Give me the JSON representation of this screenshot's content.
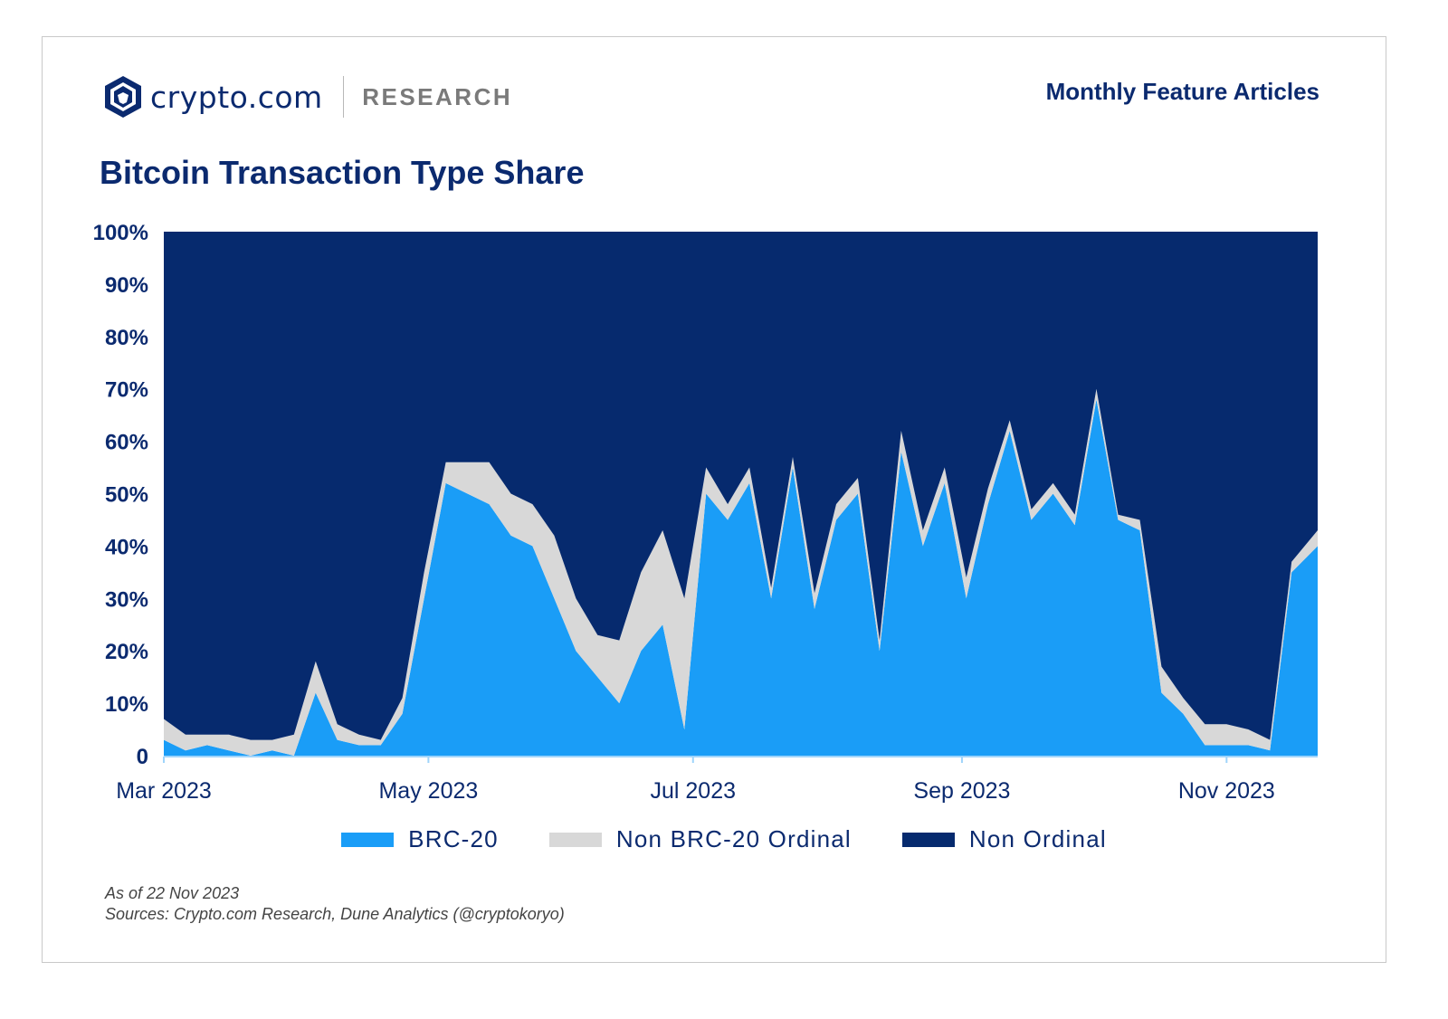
{
  "header": {
    "brand_name": "crypto.com",
    "brand_section": "RESEARCH",
    "series_label": "Monthly Feature Articles",
    "logo_icon": "crypto-com-lion-shield-icon"
  },
  "footer": {
    "as_of": "As of 22 Nov 2023",
    "sources": "Sources: Crypto.com Research, Dune Analytics (@cryptokoryo)"
  },
  "colors": {
    "brc20": "#1a9df7",
    "non_brc20_ordinal": "#d8d8d8",
    "non_ordinal": "#062a6e",
    "text_dark": "#0b2a6f"
  },
  "chart_data": {
    "type": "area",
    "stacked": true,
    "normalized": true,
    "title": "Bitcoin Transaction Type Share",
    "xlabel": "",
    "ylabel": "",
    "ylim": [
      0,
      100
    ],
    "yticks": [
      "0",
      "10%",
      "20%",
      "30%",
      "40%",
      "50%",
      "60%",
      "70%",
      "80%",
      "90%",
      "100%"
    ],
    "xticks": [
      {
        "label": "Mar 2023",
        "date": "2023-03-01"
      },
      {
        "label": "May 2023",
        "date": "2023-05-01"
      },
      {
        "label": "Jul 2023",
        "date": "2023-07-01"
      },
      {
        "label": "Sep 2023",
        "date": "2023-09-01"
      },
      {
        "label": "Nov 2023",
        "date": "2023-11-01"
      }
    ],
    "x_range": [
      "2023-03-01",
      "2023-11-22"
    ],
    "legend_position": "bottom",
    "x": [
      "2023-03-01",
      "2023-03-06",
      "2023-03-11",
      "2023-03-16",
      "2023-03-21",
      "2023-03-26",
      "2023-03-31",
      "2023-04-05",
      "2023-04-10",
      "2023-04-15",
      "2023-04-20",
      "2023-04-25",
      "2023-04-30",
      "2023-05-05",
      "2023-05-10",
      "2023-05-15",
      "2023-05-20",
      "2023-05-25",
      "2023-05-30",
      "2023-06-04",
      "2023-06-09",
      "2023-06-14",
      "2023-06-19",
      "2023-06-24",
      "2023-06-29",
      "2023-07-04",
      "2023-07-09",
      "2023-07-14",
      "2023-07-19",
      "2023-07-24",
      "2023-07-29",
      "2023-08-03",
      "2023-08-08",
      "2023-08-13",
      "2023-08-18",
      "2023-08-23",
      "2023-08-28",
      "2023-09-02",
      "2023-09-07",
      "2023-09-12",
      "2023-09-17",
      "2023-09-22",
      "2023-09-27",
      "2023-10-02",
      "2023-10-07",
      "2023-10-12",
      "2023-10-17",
      "2023-10-22",
      "2023-10-27",
      "2023-11-01",
      "2023-11-06",
      "2023-11-11",
      "2023-11-16",
      "2023-11-22"
    ],
    "series": [
      {
        "name": "BRC-20",
        "values": [
          3,
          1,
          2,
          1,
          0,
          1,
          0,
          12,
          3,
          2,
          2,
          8,
          30,
          52,
          50,
          48,
          42,
          40,
          30,
          20,
          15,
          10,
          20,
          25,
          5,
          50,
          45,
          52,
          30,
          55,
          28,
          45,
          50,
          20,
          58,
          40,
          52,
          30,
          48,
          62,
          45,
          50,
          44,
          68,
          45,
          43,
          12,
          8,
          2,
          2,
          2,
          1,
          35,
          40
        ]
      },
      {
        "name": "Non BRC-20 Ordinal",
        "values": [
          4,
          3,
          2,
          3,
          3,
          2,
          4,
          6,
          3,
          2,
          1,
          3,
          5,
          4,
          6,
          8,
          8,
          8,
          12,
          10,
          8,
          12,
          15,
          18,
          25,
          5,
          3,
          3,
          2,
          2,
          3,
          3,
          3,
          2,
          4,
          3,
          3,
          4,
          3,
          2,
          2,
          2,
          2,
          2,
          1,
          2,
          5,
          3,
          4,
          4,
          3,
          2,
          2,
          3
        ]
      },
      {
        "name": "Non Ordinal",
        "values": [
          93,
          96,
          96,
          96,
          97,
          97,
          96,
          82,
          94,
          96,
          97,
          89,
          65,
          44,
          44,
          44,
          50,
          52,
          58,
          70,
          77,
          78,
          65,
          57,
          70,
          45,
          52,
          45,
          68,
          43,
          69,
          52,
          47,
          78,
          38,
          57,
          45,
          66,
          49,
          36,
          53,
          48,
          54,
          30,
          54,
          55,
          83,
          89,
          94,
          94,
          95,
          97,
          63,
          57
        ]
      }
    ]
  }
}
